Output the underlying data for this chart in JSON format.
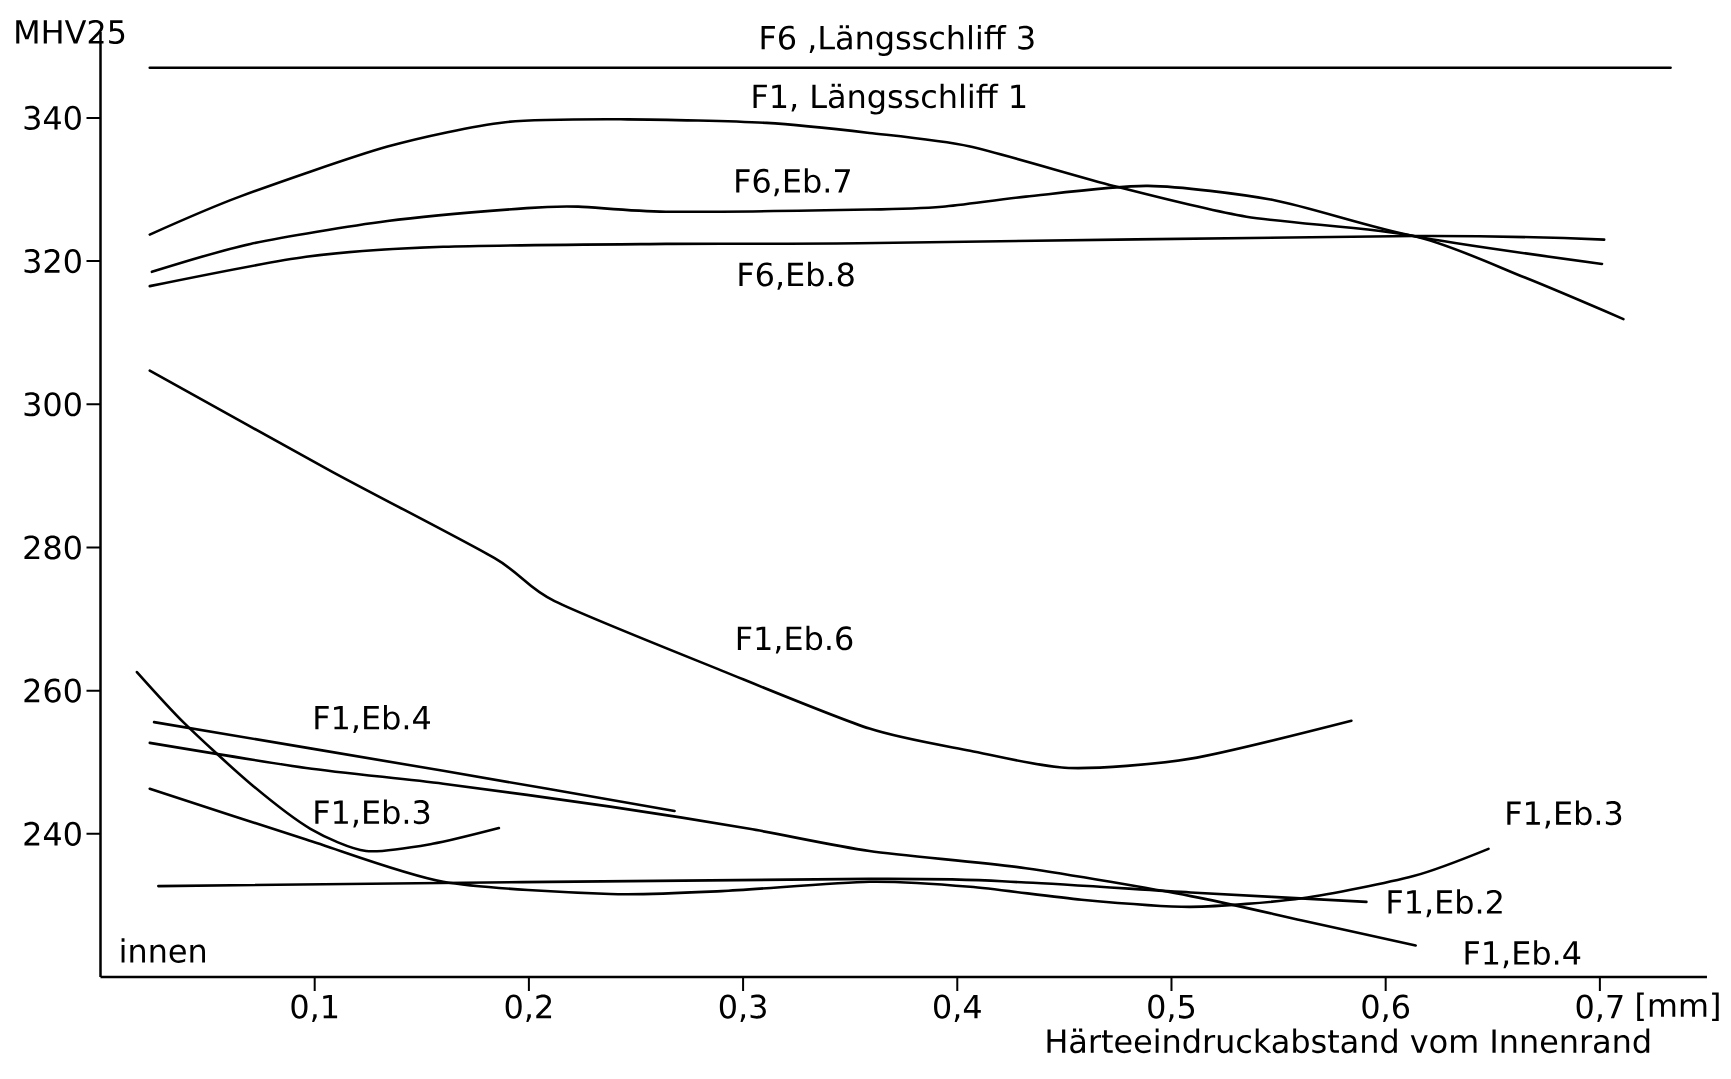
{
  "chart_data": {
    "type": "line",
    "xlabel": "Härteeindruckabstand vom Innenrand",
    "ylabel": "MHV25",
    "xlim": [
      0,
      0.75
    ],
    "ylim": [
      220,
      352
    ],
    "xticks": [
      {
        "value": 0.1,
        "label": "0,1"
      },
      {
        "value": 0.2,
        "label": "0,2"
      },
      {
        "value": 0.3,
        "label": "0,3"
      },
      {
        "value": 0.4,
        "label": "0,4"
      },
      {
        "value": 0.5,
        "label": "0,5"
      },
      {
        "value": 0.6,
        "label": "0,6"
      },
      {
        "value": 0.7,
        "label": "0,7"
      }
    ],
    "yticks": [
      240,
      260,
      280,
      300,
      320,
      340
    ],
    "marker": "none",
    "line_style": "solid",
    "series": [
      {
        "name": "F6 ,Längsschliff 3",
        "color": "#000000",
        "x": [
          0.023,
          0.733
        ],
        "values": [
          347,
          347
        ]
      },
      {
        "name": "F1, Längsschliff 1",
        "color": "#000000",
        "x": [
          0.023,
          0.065,
          0.134,
          0.189,
          0.246,
          0.311,
          0.359,
          0.406,
          0.473,
          0.535,
          0.613,
          0.665,
          0.711
        ],
        "values": [
          323.7,
          329,
          336,
          339.4,
          339.8,
          339.3,
          337.9,
          336,
          330.5,
          326.2,
          323.5,
          317.7,
          311.9
        ]
      },
      {
        "name": "F6,Eb.7",
        "color": "#000000",
        "x": [
          0.024,
          0.07,
          0.134,
          0.199,
          0.223,
          0.264,
          0.359,
          0.393,
          0.432,
          0.489,
          0.548,
          0.613,
          0.701
        ],
        "values": [
          318.5,
          322.4,
          325.6,
          327.4,
          327.6,
          326.9,
          327.2,
          327.6,
          329,
          330.5,
          328.5,
          323.5,
          319.6
        ]
      },
      {
        "name": "F6,Eb.8",
        "color": "#000000",
        "x": [
          0.023,
          0.096,
          0.16,
          0.264,
          0.354,
          0.613,
          0.702
        ],
        "values": [
          316.5,
          320.6,
          322,
          322.4,
          322.5,
          323.5,
          323
        ]
      },
      {
        "name": "F1,Eb.6",
        "color": "#000000",
        "x": [
          0.023,
          0.108,
          0.184,
          0.212,
          0.29,
          0.359,
          0.406,
          0.452,
          0.509,
          0.584
        ],
        "values": [
          304.7,
          290.6,
          278.5,
          272.5,
          262.8,
          254.7,
          251.6,
          249.2,
          250.5,
          255.8
        ]
      },
      {
        "name": "F1,Eb.4",
        "color": "#000000",
        "x": [
          0.025,
          0.16,
          0.268
        ],
        "values": [
          255.6,
          248.8,
          243.2
        ]
      },
      {
        "name": "F1,Eb.3",
        "color": "#000000",
        "x": [
          0.017,
          0.039,
          0.07,
          0.098,
          0.124,
          0.155,
          0.186
        ],
        "values": [
          262.6,
          255.5,
          247,
          240.7,
          237.6,
          238.6,
          240.8
        ]
      },
      {
        "name": "F1,Eb.3",
        "color": "#000000",
        "x": [
          0.023,
          0.096,
          0.16,
          0.238,
          0.29,
          0.359,
          0.406,
          0.458,
          0.509,
          0.561,
          0.613,
          0.648
        ],
        "values": [
          246.3,
          239.2,
          233.3,
          231.6,
          232,
          233.3,
          232.6,
          230.8,
          229.8,
          231,
          234.1,
          237.9
        ]
      },
      {
        "name": "F1,Eb.2",
        "color": "#000000",
        "x": [
          0.027,
          0.359,
          0.432,
          0.509,
          0.591
        ],
        "values": [
          232.7,
          233.7,
          233.2,
          231.8,
          230.5
        ]
      },
      {
        "name": "F1,Eb.4",
        "color": "#000000",
        "x": [
          0.023,
          0.096,
          0.16,
          0.238,
          0.303,
          0.359,
          0.432,
          0.509,
          0.561,
          0.614
        ],
        "values": [
          252.7,
          249.2,
          247,
          243.8,
          240.7,
          237.6,
          235.2,
          231.3,
          227.9,
          224.4
        ]
      }
    ],
    "annotations": [
      "innen",
      "[mm]"
    ]
  }
}
